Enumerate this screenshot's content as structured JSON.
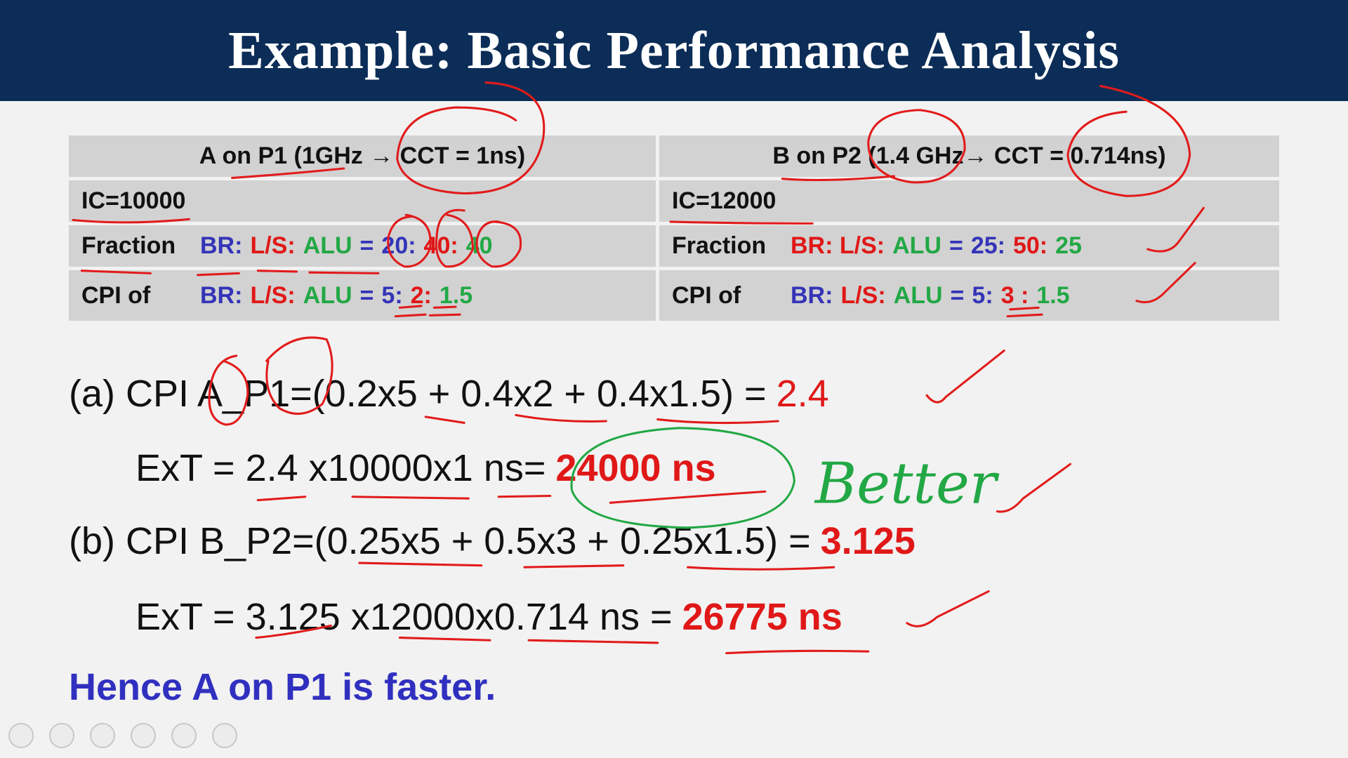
{
  "header": {
    "title": "Example: Basic Performance Analysis"
  },
  "table": {
    "header": [
      "A on P1 (1GHz → CCT = 1ns)",
      "B on P2 (1.4 GHz→ CCT = 0.714ns)"
    ],
    "rows": [
      [
        {
          "label": "IC=10000",
          "parts": []
        },
        {
          "label": "IC=12000",
          "parts": []
        }
      ],
      [
        {
          "label": "Fraction",
          "parts": [
            {
              "text": "BR:",
              "color": "#3434b8"
            },
            {
              "text": "L/S:",
              "color": "#e01818"
            },
            {
              "text": "ALU",
              "color": "#22a845"
            },
            {
              "text": "=",
              "color": "#3434b8"
            },
            {
              "text": "20:",
              "color": "#3434b8"
            },
            {
              "text": "40:",
              "color": "#e01818"
            },
            {
              "text": "40",
              "color": "#22a845"
            }
          ]
        },
        {
          "label": "Fraction",
          "parts": [
            {
              "text": "BR: L/S:",
              "color": "#e01818"
            },
            {
              "text": "ALU",
              "color": "#22a845"
            },
            {
              "text": "=",
              "color": "#3434b8"
            },
            {
              "text": "25:",
              "color": "#3434b8"
            },
            {
              "text": "50:",
              "color": "#e01818"
            },
            {
              "text": "25",
              "color": "#22a845"
            }
          ]
        }
      ],
      [
        {
          "label": "CPI of",
          "parts": [
            {
              "text": "BR:",
              "color": "#3434b8"
            },
            {
              "text": "L/S:",
              "color": "#e01818"
            },
            {
              "text": "ALU",
              "color": "#22a845"
            },
            {
              "text": "=",
              "color": "#3434b8"
            },
            {
              "text": "5:",
              "color": "#3434b8"
            },
            {
              "text": "2:",
              "color": "#e01818"
            },
            {
              "text": "1.5",
              "color": "#22a845"
            }
          ]
        },
        {
          "label": "CPI of",
          "parts": [
            {
              "text": "BR:",
              "color": "#3434b8"
            },
            {
              "text": "L/S:",
              "color": "#e01818"
            },
            {
              "text": "ALU",
              "color": "#22a845"
            },
            {
              "text": "=",
              "color": "#3434b8"
            },
            {
              "text": "5:",
              "color": "#3434b8"
            },
            {
              "text": "3 :",
              "color": "#e01818"
            },
            {
              "text": "1.5",
              "color": "#22a845"
            }
          ]
        }
      ]
    ]
  },
  "equations": [
    [
      {
        "text": "(a) CPI A_P1=(0.2x5 + 0.4x2 + 0.4x1.5) =",
        "color": "#111111",
        "bold": false
      },
      {
        "text": "2.4",
        "color": "#e01818",
        "bold": false
      }
    ],
    [
      {
        "text": "ExT = 2.4 x10000x1 ns=",
        "color": "#111111",
        "bold": false
      },
      {
        "text": "24000 ns",
        "color": "#e01818",
        "bold": true
      }
    ],
    [
      {
        "text": "(b) CPI B_P2=(0.25x5 + 0.5x3 + 0.25x1.5) =",
        "color": "#111111",
        "bold": false
      },
      {
        "text": "3.125",
        "color": "#e01818",
        "bold": true
      }
    ],
    [
      {
        "text": "ExT = 3.125 x12000x0.714 ns =",
        "color": "#111111",
        "bold": false
      },
      {
        "text": "26775 ns",
        "color": "#e01818",
        "bold": true
      }
    ]
  ],
  "conclusion": "Hence A on P1 is faster.",
  "annotation": "Better"
}
